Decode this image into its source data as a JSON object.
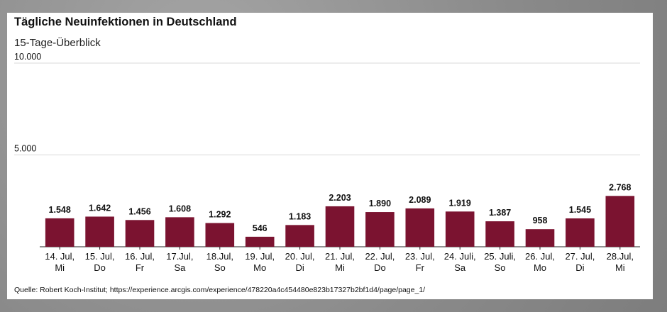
{
  "chart_data": {
    "type": "bar",
    "title": "Tägliche Neuinfektionen in Deutschland",
    "subtitle": "15-Tage-Überblick",
    "categories": [
      [
        "14. Jul,",
        "Mi"
      ],
      [
        "15. Jul,",
        "Do"
      ],
      [
        "16. Jul,",
        "Fr"
      ],
      [
        "17.Jul,",
        "Sa"
      ],
      [
        "18.Jul,",
        "So"
      ],
      [
        "19. Jul,",
        "Mo"
      ],
      [
        "20. Jul,",
        "Di"
      ],
      [
        "21. Jul,",
        "Mi"
      ],
      [
        "22. Jul,",
        "Do"
      ],
      [
        "23. Jul,",
        "Fr"
      ],
      [
        "24. Juli,",
        "Sa"
      ],
      [
        "25. Juli,",
        "So"
      ],
      [
        "26. Jul,",
        "Mo"
      ],
      [
        "27. Jul,",
        "Di"
      ],
      [
        "28.Jul,",
        "Mi"
      ]
    ],
    "values": [
      1548,
      1642,
      1456,
      1608,
      1292,
      546,
      1183,
      2203,
      1890,
      2089,
      1919,
      1387,
      958,
      1545,
      2768
    ],
    "value_labels": [
      "1.548",
      "1.642",
      "1.456",
      "1.608",
      "1.292",
      "546",
      "1.183",
      "2.203",
      "1.890",
      "2.089",
      "1.919",
      "1.387",
      "958",
      "1.545",
      "2.768"
    ],
    "yticks": [
      {
        "value": 5000,
        "label": "5.000"
      },
      {
        "value": 10000,
        "label": "10.000"
      }
    ],
    "ylim": [
      0,
      10000
    ],
    "xlabel": "",
    "ylabel": "",
    "grid": true,
    "bar_color": "#7b1330"
  },
  "source": "Quelle: Robert Koch-Institut; https://experience.arcgis.com/experience/478220a4c454480e823b17327b2bf1d4/page/page_1/"
}
